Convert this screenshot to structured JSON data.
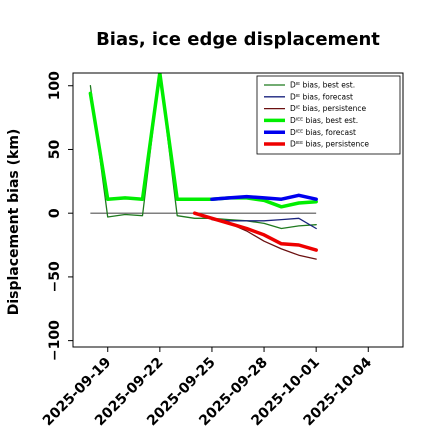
{
  "chart_data": {
    "type": "line",
    "title": "Bias, ice edge displacement",
    "xlabel": "",
    "ylabel": "Displacement bias (km)",
    "xlim": [
      "2025-09-17",
      "2025-10-06"
    ],
    "ylim": [
      -105,
      110
    ],
    "x_ticks": [
      "2025-09-19",
      "2025-09-22",
      "2025-09-25",
      "2025-09-28",
      "2025-10-01",
      "2025-10-04"
    ],
    "x_tick_highlight": "2025-09-25",
    "x_tick_highlight_color": "#228b22",
    "y_ticks": [
      100,
      50,
      0,
      -50,
      -100
    ],
    "y_tick_labels": [
      "100",
      "50",
      "0",
      "−50",
      "−100"
    ],
    "reference_line": 0,
    "legend_position": "top-right",
    "series": [
      {
        "name": "Dᴵᴱ bias, best est.",
        "color": "#1f7a1f",
        "width": 1.3,
        "x": [
          "2025-09-18",
          "2025-09-19",
          "2025-09-20",
          "2025-09-21",
          "2025-09-22",
          "2025-09-23",
          "2025-09-24",
          "2025-09-25",
          "2025-09-26",
          "2025-09-27",
          "2025-09-28",
          "2025-09-29",
          "2025-09-30",
          "2025-10-01"
        ],
        "values": [
          100,
          -3,
          -1,
          -2,
          110,
          -2,
          -4,
          -4,
          -5,
          -6,
          -8,
          -12,
          -10,
          -9
        ]
      },
      {
        "name": "Dᴵᴱ bias, forecast",
        "color": "#1a237e",
        "width": 1.3,
        "x": [
          "2025-09-25",
          "2025-09-26",
          "2025-09-27",
          "2025-09-28",
          "2025-09-29",
          "2025-09-30",
          "2025-10-01"
        ],
        "values": [
          -5,
          -6,
          -6,
          -6,
          -5,
          -4,
          -12
        ]
      },
      {
        "name": "Dᴵᴱ bias, persistence",
        "color": "#6b1010",
        "width": 1.3,
        "x": [
          "2025-09-25",
          "2025-09-26",
          "2025-09-27",
          "2025-09-28",
          "2025-09-29",
          "2025-09-30",
          "2025-10-01"
        ],
        "values": [
          -5,
          -8,
          -14,
          -22,
          -28,
          -33,
          -36
        ]
      },
      {
        "name": "Dᴵᴱᴱ bias, best est.",
        "color": "#00ee00",
        "width": 3.5,
        "x": [
          "2025-09-18",
          "2025-09-19",
          "2025-09-20",
          "2025-09-21",
          "2025-09-22",
          "2025-09-23",
          "2025-09-24",
          "2025-09-25",
          "2025-09-26",
          "2025-09-27",
          "2025-09-28",
          "2025-09-29",
          "2025-09-30",
          "2025-10-01"
        ],
        "values": [
          94,
          11,
          12,
          11,
          110,
          11,
          11,
          11,
          12,
          12,
          10,
          5,
          8,
          9
        ]
      },
      {
        "name": "Dᴵᴱᴱ bias, forecast",
        "color": "#0000ee",
        "width": 3.5,
        "x": [
          "2025-09-25",
          "2025-09-26",
          "2025-09-27",
          "2025-09-28",
          "2025-09-29",
          "2025-09-30",
          "2025-10-01"
        ],
        "values": [
          11,
          12,
          13,
          12,
          11,
          14,
          11
        ]
      },
      {
        "name": "Dᴵᴱᴱ bias, persistence",
        "color": "#ee0000",
        "width": 3.5,
        "x": [
          "2025-09-24",
          "2025-09-25",
          "2025-09-26",
          "2025-09-27",
          "2025-09-28",
          "2025-09-29",
          "2025-09-30",
          "2025-10-01"
        ],
        "values": [
          0,
          -4,
          -8,
          -12,
          -17,
          -24,
          -25,
          -29
        ]
      }
    ]
  }
}
